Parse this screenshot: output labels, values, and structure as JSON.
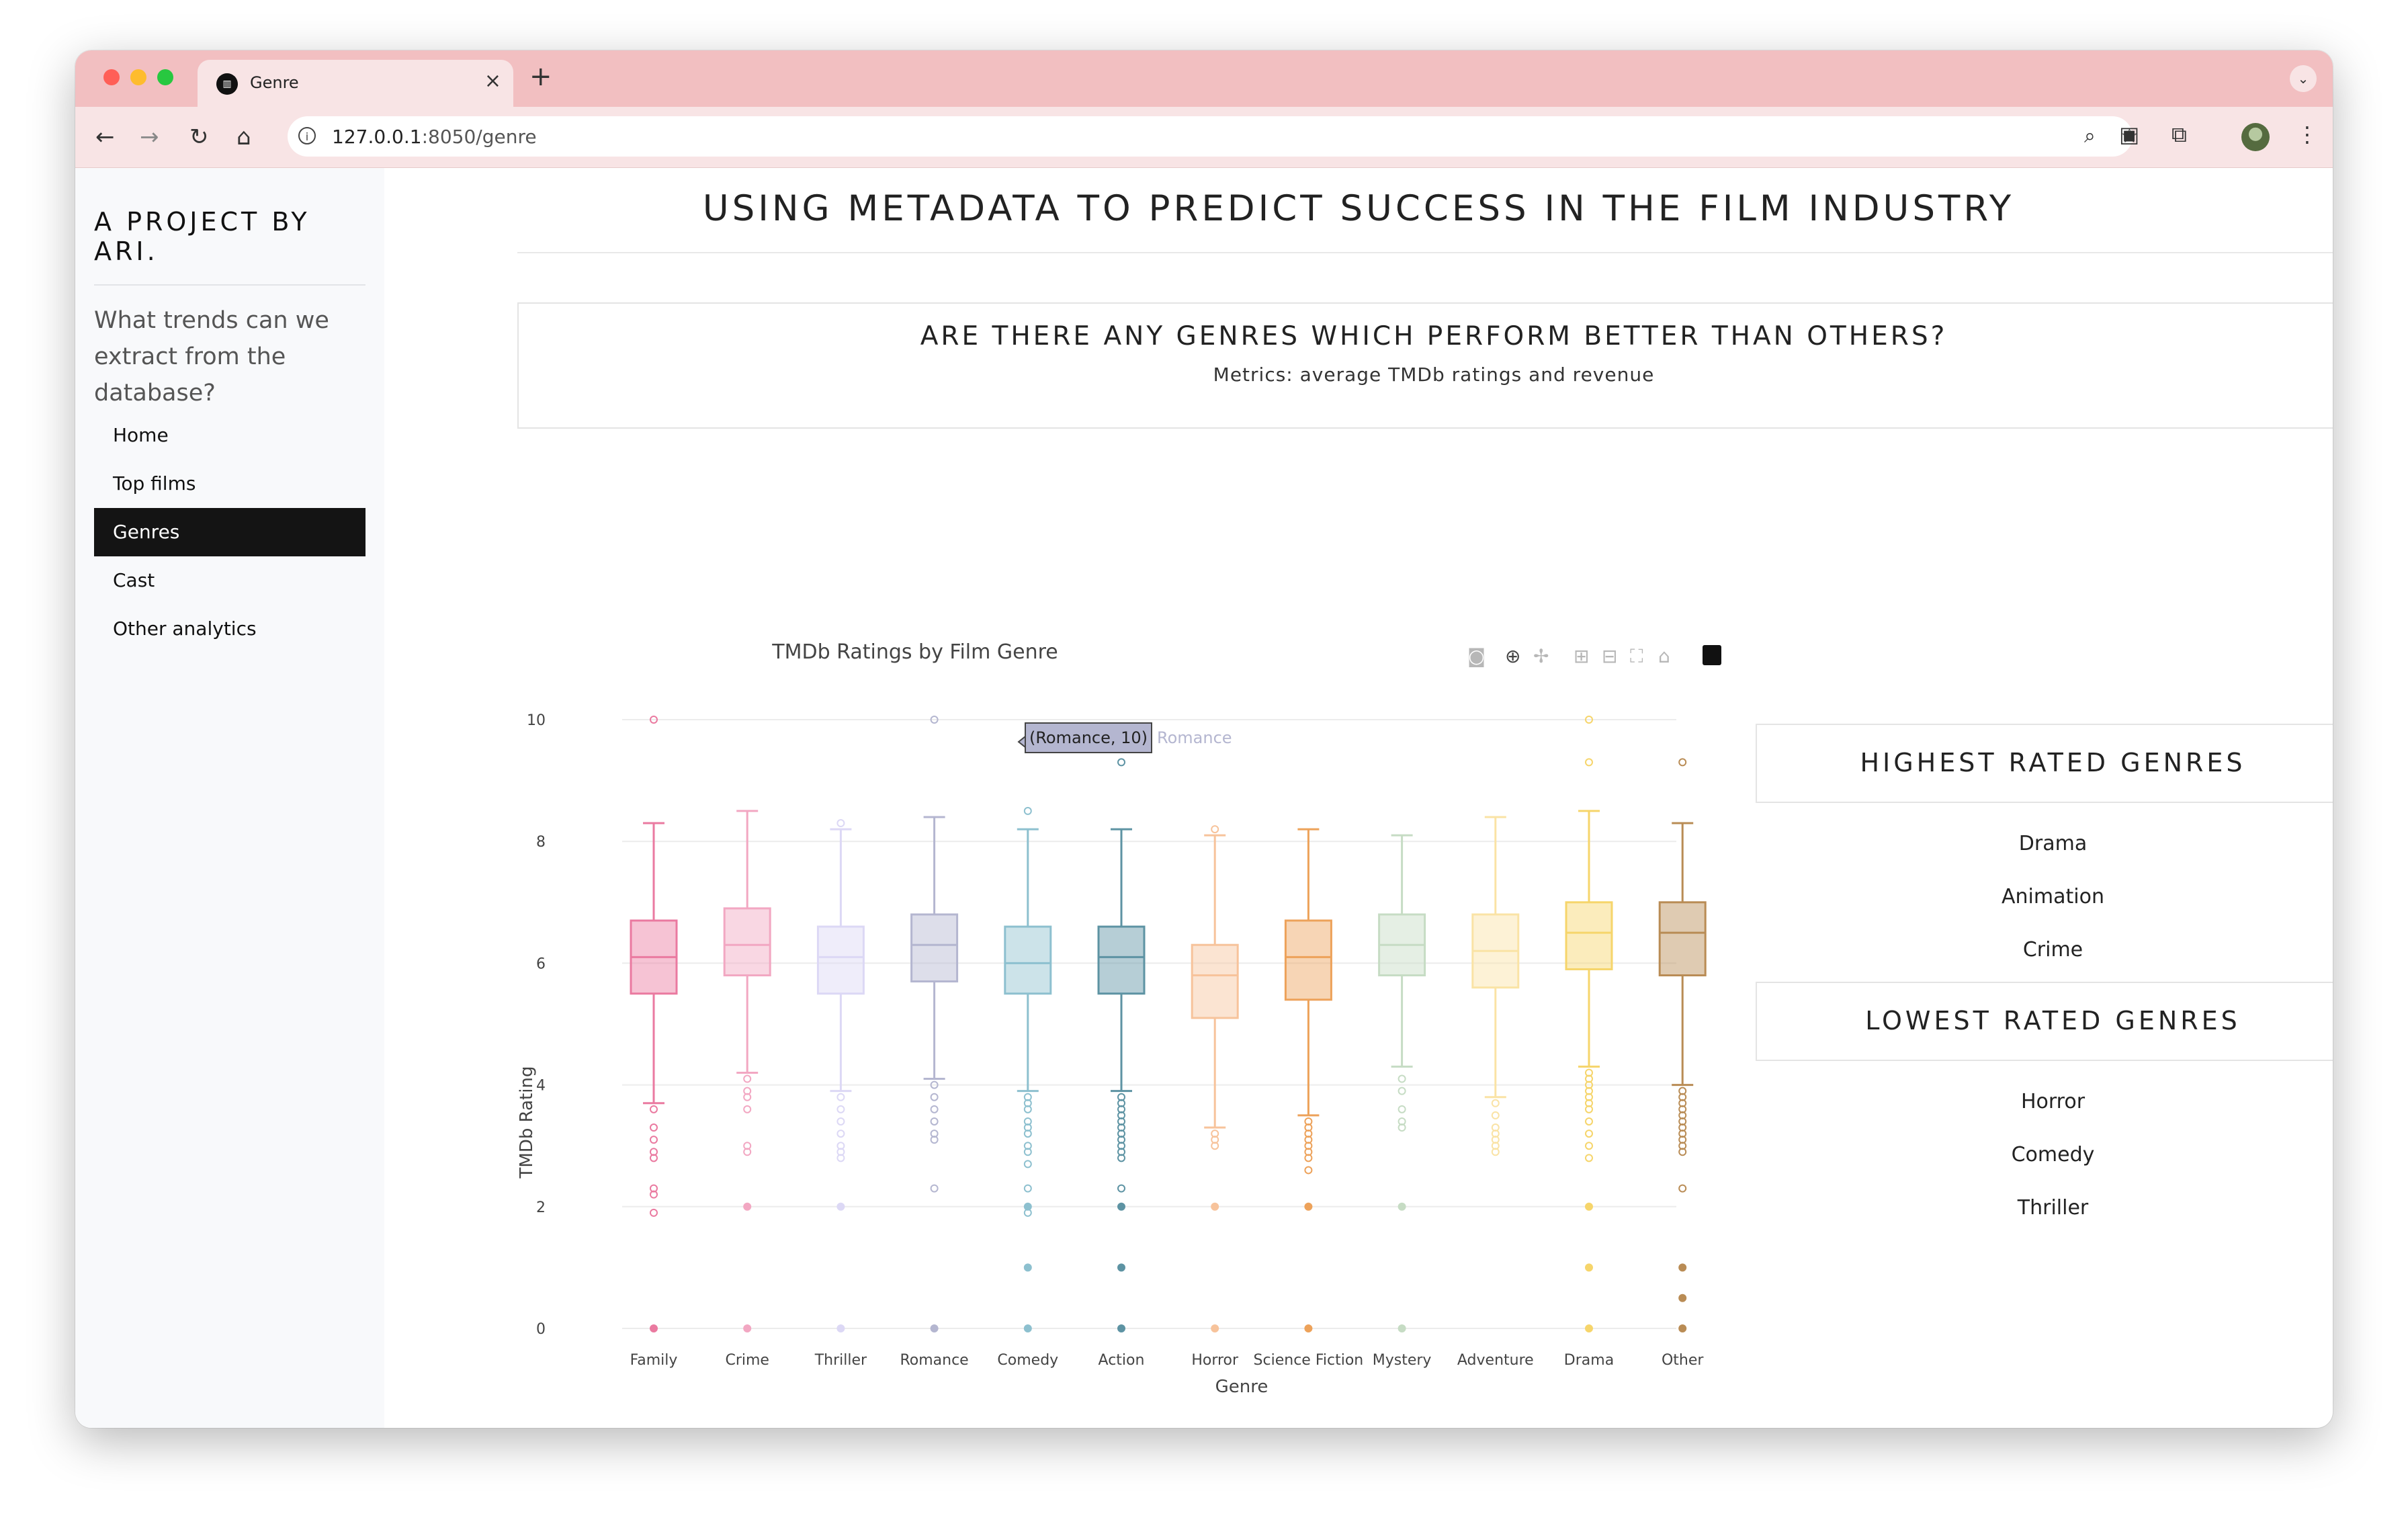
{
  "browser": {
    "tab_title": "Genre",
    "url_host": "127.0.0.1",
    "url_path": ":8050/genre"
  },
  "sidebar": {
    "brand": "A PROJECT BY ARI.",
    "lead": "What trends can we extract from the database?",
    "items": [
      {
        "label": "Home",
        "active": false
      },
      {
        "label": "Top films",
        "active": false
      },
      {
        "label": "Genres",
        "active": true
      },
      {
        "label": "Cast",
        "active": false
      },
      {
        "label": "Other analytics",
        "active": false
      }
    ]
  },
  "main": {
    "title": "USING METADATA TO PREDICT SUCCESS IN THE FILM INDUSTRY",
    "question": "ARE THERE ANY GENRES WHICH PERFORM BETTER THAN OTHERS?",
    "metrics": "Metrics: average TMDb ratings and revenue"
  },
  "highest": {
    "heading": "HIGHEST RATED GENRES",
    "items": [
      "Drama",
      "Animation",
      "Crime"
    ]
  },
  "lowest": {
    "heading": "LOWEST RATED GENRES",
    "items": [
      "Horror",
      "Comedy",
      "Thriller"
    ]
  },
  "chart_data": {
    "type": "box",
    "title": "TMDb Ratings by Film Genre",
    "xlabel": "Genre",
    "ylabel": "TMDb Rating",
    "ylim": [
      -0.4,
      10.4
    ],
    "yticks": [
      0,
      2,
      4,
      6,
      8,
      10
    ],
    "grid": true,
    "legend": "none",
    "tooltip": {
      "text": "(Romance, 10)",
      "series": "Romance"
    },
    "categories": [
      "Family",
      "Crime",
      "Thriller",
      "Romance",
      "Comedy",
      "Action",
      "Horror",
      "Science Fiction",
      "Mystery",
      "Adventure",
      "Drama",
      "Other"
    ],
    "series": [
      {
        "name": "Family",
        "color": "#ea7aa0",
        "min": 3.7,
        "q1": 5.5,
        "median": 6.1,
        "q3": 6.7,
        "max": 8.3,
        "outliers": [
          10,
          3.6,
          3.3,
          3.1,
          2.9,
          2.8,
          2.3,
          2.2,
          1.9,
          0
        ]
      },
      {
        "name": "Crime",
        "color": "#f2a7c2",
        "min": 4.2,
        "q1": 5.8,
        "median": 6.3,
        "q3": 6.9,
        "max": 8.5,
        "outliers": [
          4.1,
          3.9,
          3.8,
          3.6,
          3.0,
          2.9,
          2.0,
          0
        ]
      },
      {
        "name": "Thriller",
        "color": "#dcd8f5",
        "min": 3.9,
        "q1": 5.5,
        "median": 6.1,
        "q3": 6.6,
        "max": 8.2,
        "outliers": [
          8.3,
          3.8,
          3.6,
          3.4,
          3.2,
          3.0,
          2.9,
          2.8,
          2.0,
          0
        ]
      },
      {
        "name": "Romance",
        "color": "#b4b6d0",
        "min": 4.1,
        "q1": 5.7,
        "median": 6.3,
        "q3": 6.8,
        "max": 8.4,
        "outliers": [
          10,
          4.0,
          3.8,
          3.6,
          3.4,
          3.2,
          3.1,
          2.3,
          0
        ]
      },
      {
        "name": "Comedy",
        "color": "#8dc0cf",
        "min": 3.9,
        "q1": 5.5,
        "median": 6.0,
        "q3": 6.6,
        "max": 8.2,
        "outliers": [
          8.5,
          3.8,
          3.7,
          3.6,
          3.4,
          3.3,
          3.2,
          3.0,
          2.9,
          2.7,
          2.3,
          2.0,
          1.9,
          1.0,
          0
        ]
      },
      {
        "name": "Action",
        "color": "#5d93a3",
        "min": 3.9,
        "q1": 5.5,
        "median": 6.1,
        "q3": 6.6,
        "max": 8.2,
        "outliers": [
          9.3,
          3.8,
          3.7,
          3.6,
          3.5,
          3.4,
          3.3,
          3.2,
          3.1,
          3.0,
          2.9,
          2.8,
          2.3,
          2.0,
          1.0,
          0
        ]
      },
      {
        "name": "Horror",
        "color": "#f7c39b",
        "min": 3.3,
        "q1": 5.1,
        "median": 5.8,
        "q3": 6.3,
        "max": 8.1,
        "outliers": [
          8.2,
          3.2,
          3.1,
          3.0,
          2.0,
          0
        ]
      },
      {
        "name": "Science Fiction",
        "color": "#eda25a",
        "min": 3.5,
        "q1": 5.4,
        "median": 6.1,
        "q3": 6.7,
        "max": 8.2,
        "outliers": [
          3.4,
          3.3,
          3.2,
          3.1,
          3.0,
          2.9,
          2.8,
          2.6,
          2.0,
          0
        ]
      },
      {
        "name": "Mystery",
        "color": "#c6dcc4",
        "min": 4.3,
        "q1": 5.8,
        "median": 6.3,
        "q3": 6.8,
        "max": 8.1,
        "outliers": [
          4.1,
          3.9,
          3.6,
          3.4,
          3.3,
          2.0,
          0
        ]
      },
      {
        "name": "Adventure",
        "color": "#fae3a5",
        "min": 3.8,
        "q1": 5.6,
        "median": 6.2,
        "q3": 6.8,
        "max": 8.4,
        "outliers": [
          3.7,
          3.5,
          3.3,
          3.2,
          3.1,
          3.0,
          2.9
        ]
      },
      {
        "name": "Drama",
        "color": "#f6d56b",
        "min": 4.3,
        "q1": 5.9,
        "median": 6.5,
        "q3": 7.0,
        "max": 8.5,
        "outliers": [
          10,
          9.3,
          4.2,
          4.1,
          4.0,
          3.9,
          3.8,
          3.7,
          3.6,
          3.4,
          3.2,
          3.0,
          2.8,
          2.0,
          1.0,
          0
        ]
      },
      {
        "name": "Other",
        "color": "#b98c55",
        "min": 4.0,
        "q1": 5.8,
        "median": 6.5,
        "q3": 7.0,
        "max": 8.3,
        "outliers": [
          9.3,
          3.9,
          3.8,
          3.7,
          3.6,
          3.5,
          3.4,
          3.3,
          3.2,
          3.1,
          3.0,
          2.9,
          2.3,
          1.0,
          0.5,
          0
        ]
      }
    ]
  }
}
